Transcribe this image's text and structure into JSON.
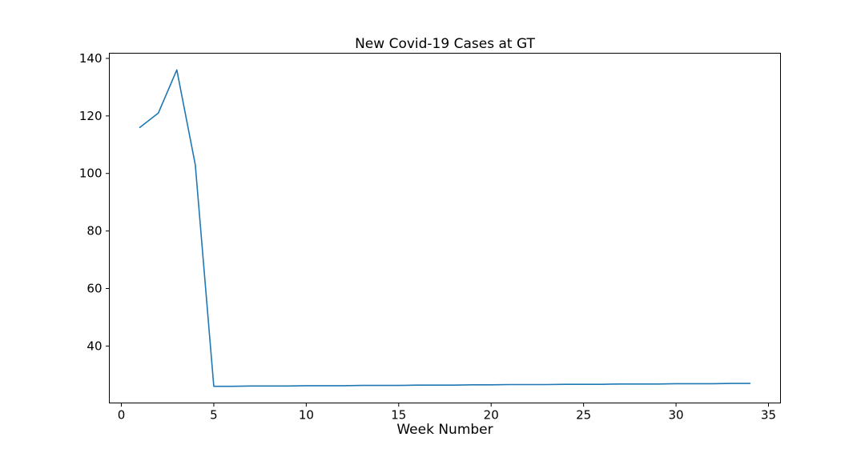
{
  "figure": {
    "background": "#ffffff"
  },
  "chart_data": {
    "type": "line",
    "title": "New Covid-19 Cases at GT",
    "xlabel": "Week Number",
    "ylabel": "",
    "x": [
      1,
      2,
      3,
      4,
      5,
      6,
      7,
      8,
      9,
      10,
      11,
      12,
      13,
      14,
      15,
      16,
      17,
      18,
      19,
      20,
      21,
      22,
      23,
      24,
      25,
      26,
      27,
      28,
      29,
      30,
      31,
      32,
      33,
      34
    ],
    "values": [
      116,
      121,
      136,
      103,
      26,
      26,
      26.1,
      26.1,
      26.1,
      26.2,
      26.2,
      26.2,
      26.3,
      26.3,
      26.3,
      26.4,
      26.4,
      26.4,
      26.5,
      26.5,
      26.6,
      26.6,
      26.6,
      26.7,
      26.7,
      26.7,
      26.8,
      26.8,
      26.8,
      26.9,
      26.9,
      26.9,
      27,
      27
    ],
    "xticks": [
      0,
      5,
      10,
      15,
      20,
      25,
      30,
      35
    ],
    "yticks": [
      40,
      60,
      80,
      100,
      120,
      140
    ],
    "xlim": [
      -0.65,
      35.65
    ],
    "ylim": [
      20.2,
      141.8
    ],
    "grid": false,
    "legend": null,
    "line_color": "#1f77b4",
    "axis_color": "#000000",
    "text_color": "#000000"
  }
}
